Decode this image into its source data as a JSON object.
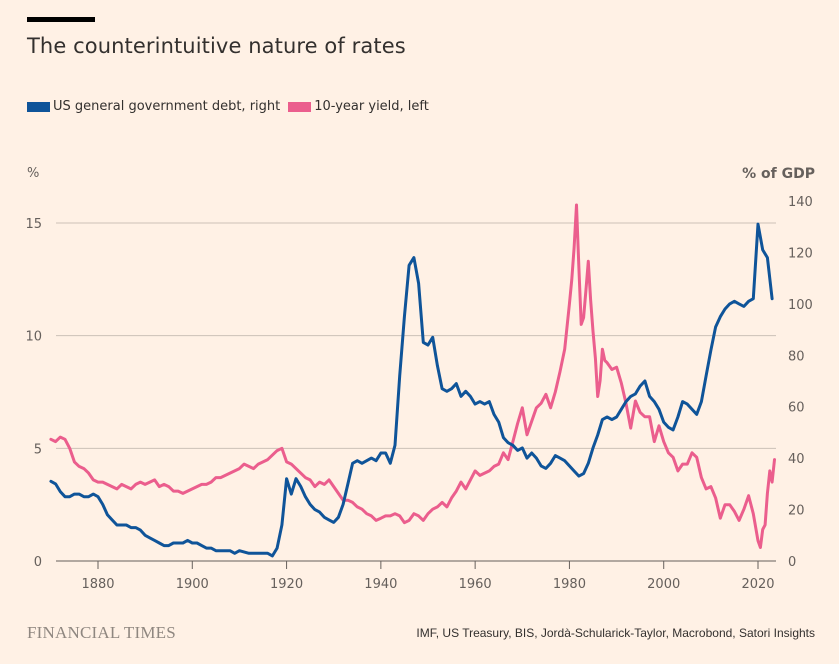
{
  "header": {
    "title": "The counterintuitive nature of rates"
  },
  "legend": [
    {
      "label": "US general government debt, right",
      "color": "#0f5499"
    },
    {
      "label": "10-year yield, left",
      "color": "#eb5e8d"
    }
  ],
  "footer": {
    "brand": "FINANCIAL TIMES",
    "source": "IMF, US Treasury, BIS, Jordà-Schularick-Taylor, Macrobond, Satori Insights"
  },
  "chart_data": {
    "type": "line",
    "title": "The counterintuitive nature of rates",
    "xlabel": "",
    "ylabel_left": "%",
    "ylabel_right": "% of GDP",
    "xlim": [
      1870,
      2024
    ],
    "ylim_left": [
      0,
      16
    ],
    "ylim_right": [
      0,
      140
    ],
    "x_ticks": [
      1880,
      1900,
      1920,
      1940,
      1960,
      1980,
      2000,
      2020
    ],
    "y_ticks_left": [
      0,
      5,
      10,
      15
    ],
    "y_ticks_right": [
      0,
      20,
      40,
      60,
      80,
      100,
      120,
      140
    ],
    "grid": "horizontal",
    "legend_position": "top-left",
    "series": [
      {
        "name": "US general government debt, right",
        "axis": "right",
        "color": "#0f5499",
        "x": [
          1870,
          1871,
          1872,
          1873,
          1874,
          1875,
          1876,
          1877,
          1878,
          1879,
          1880,
          1881,
          1882,
          1883,
          1884,
          1885,
          1886,
          1887,
          1888,
          1889,
          1890,
          1891,
          1892,
          1893,
          1894,
          1895,
          1896,
          1897,
          1898,
          1899,
          1900,
          1901,
          1902,
          1903,
          1904,
          1905,
          1906,
          1907,
          1908,
          1909,
          1910,
          1912,
          1914,
          1916,
          1917,
          1918,
          1919,
          1920,
          1921,
          1922,
          1923,
          1924,
          1925,
          1926,
          1927,
          1928,
          1929,
          1930,
          1931,
          1932,
          1933,
          1934,
          1935,
          1936,
          1937,
          1938,
          1939,
          1940,
          1941,
          1942,
          1943,
          1944,
          1945,
          1946,
          1947,
          1948,
          1949,
          1950,
          1951,
          1952,
          1953,
          1954,
          1955,
          1956,
          1957,
          1958,
          1959,
          1960,
          1961,
          1962,
          1963,
          1964,
          1965,
          1966,
          1967,
          1968,
          1969,
          1970,
          1971,
          1972,
          1973,
          1974,
          1975,
          1976,
          1977,
          1978,
          1979,
          1980,
          1981,
          1982,
          1983,
          1984,
          1985,
          1986,
          1987,
          1988,
          1989,
          1990,
          1991,
          1992,
          1993,
          1994,
          1995,
          1996,
          1997,
          1998,
          1999,
          2000,
          2001,
          2002,
          2003,
          2004,
          2005,
          2006,
          2007,
          2008,
          2009,
          2010,
          2011,
          2012,
          2013,
          2014,
          2015,
          2016,
          2017,
          2018,
          2019,
          2020,
          2021,
          2022,
          2023
        ],
        "values": [
          31,
          30,
          27,
          25,
          25,
          26,
          26,
          25,
          25,
          26,
          25,
          22,
          18,
          16,
          14,
          14,
          14,
          13,
          13,
          12,
          10,
          9,
          8,
          7,
          6,
          6,
          7,
          7,
          7,
          8,
          7,
          7,
          6,
          5,
          5,
          4,
          4,
          4,
          4,
          3,
          4,
          3,
          3,
          3,
          2,
          5,
          14,
          32,
          26,
          32,
          29,
          25,
          22,
          20,
          19,
          17,
          16,
          15,
          17,
          22,
          30,
          38,
          39,
          38,
          39,
          40,
          39,
          42,
          42,
          38,
          45,
          72,
          95,
          115,
          118,
          108,
          85,
          84,
          87,
          76,
          67,
          66,
          67,
          69,
          64,
          66,
          64,
          61,
          62,
          61,
          62,
          57,
          54,
          48,
          46,
          45,
          43,
          44,
          40,
          42,
          40,
          37,
          36,
          38,
          41,
          40,
          39,
          37,
          35,
          33,
          34,
          38,
          44,
          49,
          55,
          56,
          55,
          56,
          59,
          62,
          64,
          65,
          68,
          70,
          64,
          62,
          59,
          54,
          52,
          51,
          56,
          62,
          61,
          59,
          57,
          62,
          72,
          82,
          91,
          95,
          98,
          100,
          101,
          100,
          99,
          101,
          102,
          131,
          121,
          118,
          102
        ]
      },
      {
        "name": "10-year yield, left",
        "axis": "left",
        "color": "#eb5e8d",
        "x": [
          1870,
          1871,
          1872,
          1873,
          1874,
          1875,
          1876,
          1877,
          1878,
          1879,
          1880,
          1881,
          1882,
          1883,
          1884,
          1885,
          1886,
          1887,
          1888,
          1889,
          1890,
          1891,
          1892,
          1893,
          1894,
          1895,
          1896,
          1897,
          1898,
          1899,
          1900,
          1901,
          1902,
          1903,
          1904,
          1905,
          1906,
          1907,
          1908,
          1909,
          1910,
          1911,
          1912,
          1913,
          1914,
          1915,
          1916,
          1917,
          1918,
          1919,
          1920,
          1921,
          1922,
          1923,
          1924,
          1925,
          1926,
          1927,
          1928,
          1929,
          1930,
          1931,
          1932,
          1933,
          1934,
          1935,
          1936,
          1937,
          1938,
          1939,
          1940,
          1941,
          1942,
          1943,
          1944,
          1945,
          1946,
          1947,
          1948,
          1949,
          1950,
          1951,
          1952,
          1953,
          1954,
          1955,
          1956,
          1957,
          1958,
          1959,
          1960,
          1961,
          1962,
          1963,
          1964,
          1965,
          1966,
          1967,
          1968,
          1969,
          1970,
          1971,
          1972,
          1973,
          1974,
          1975,
          1976,
          1977,
          1978,
          1979,
          1980,
          1980.5,
          1981,
          1981.5,
          1982,
          1982.5,
          1983,
          1983.5,
          1984,
          1984.5,
          1985,
          1985.5,
          1986,
          1986.5,
          1987,
          1987.5,
          1988,
          1989,
          1990,
          1991,
          1992,
          1993,
          1994,
          1995,
          1996,
          1997,
          1998,
          1999,
          2000,
          2001,
          2002,
          2003,
          2004,
          2005,
          2006,
          2007,
          2008,
          2009,
          2010,
          2011,
          2012,
          2013,
          2014,
          2015,
          2016,
          2017,
          2018,
          2019,
          2020,
          2020.5,
          2021,
          2021.5,
          2022,
          2022.5,
          2023,
          2023.5
        ],
        "values": [
          5.4,
          5.3,
          5.5,
          5.4,
          5.0,
          4.4,
          4.2,
          4.1,
          3.9,
          3.6,
          3.5,
          3.5,
          3.4,
          3.3,
          3.2,
          3.4,
          3.3,
          3.2,
          3.4,
          3.5,
          3.4,
          3.5,
          3.6,
          3.3,
          3.4,
          3.3,
          3.1,
          3.1,
          3.0,
          3.1,
          3.2,
          3.3,
          3.4,
          3.4,
          3.5,
          3.7,
          3.7,
          3.8,
          3.9,
          4.0,
          4.1,
          4.3,
          4.2,
          4.1,
          4.3,
          4.4,
          4.5,
          4.7,
          4.9,
          5.0,
          4.4,
          4.3,
          4.1,
          3.9,
          3.7,
          3.6,
          3.3,
          3.5,
          3.4,
          3.6,
          3.3,
          3.0,
          2.7,
          2.7,
          2.6,
          2.4,
          2.3,
          2.1,
          2.0,
          1.8,
          1.9,
          2.0,
          2.0,
          2.1,
          2.0,
          1.7,
          1.8,
          2.1,
          2.0,
          1.8,
          2.1,
          2.3,
          2.4,
          2.6,
          2.4,
          2.8,
          3.1,
          3.5,
          3.2,
          3.6,
          4.0,
          3.8,
          3.9,
          4.0,
          4.2,
          4.3,
          4.8,
          4.5,
          5.3,
          6.1,
          6.8,
          5.6,
          6.2,
          6.8,
          7.0,
          7.4,
          6.8,
          7.5,
          8.4,
          9.4,
          11.4,
          12.5,
          13.9,
          15.8,
          13.0,
          10.5,
          10.8,
          12.0,
          13.3,
          11.6,
          10.2,
          9.0,
          7.3,
          8.0,
          9.4,
          8.9,
          8.8,
          8.5,
          8.6,
          7.9,
          7.0,
          5.9,
          7.1,
          6.6,
          6.4,
          6.4,
          5.3,
          6.0,
          5.3,
          4.8,
          4.6,
          4.0,
          4.3,
          4.3,
          4.8,
          4.6,
          3.7,
          3.2,
          3.3,
          2.8,
          1.9,
          2.5,
          2.5,
          2.2,
          1.8,
          2.3,
          2.9,
          2.1,
          0.9,
          0.6,
          1.4,
          1.6,
          3.0,
          4.0,
          3.5,
          4.5
        ]
      }
    ]
  }
}
